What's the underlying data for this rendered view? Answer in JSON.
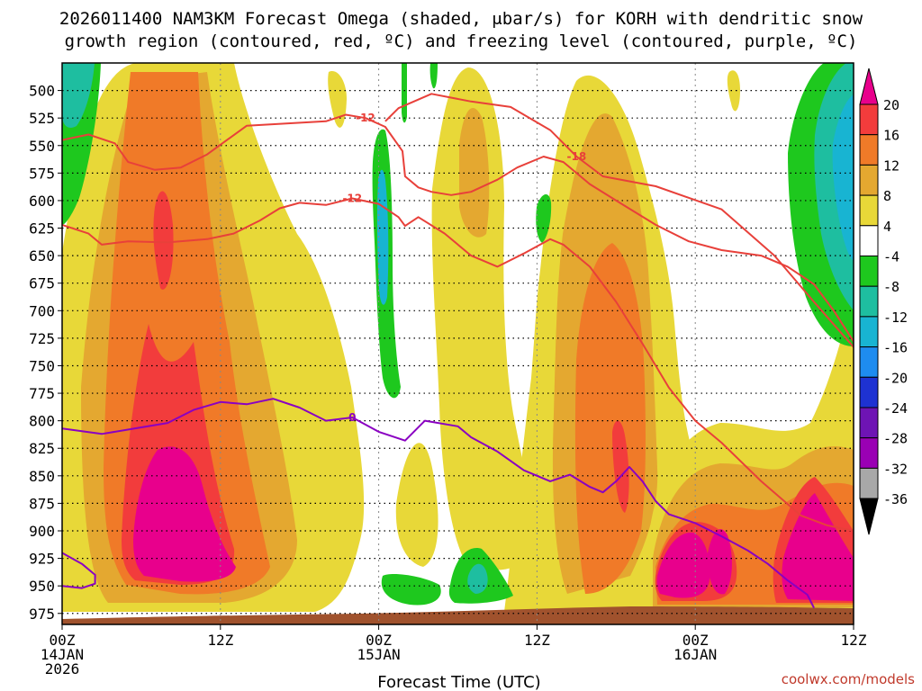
{
  "chart_data": {
    "type": "time-height contour (shaded omega)",
    "title_line1": "2026011400 NAM3KM Forecast Omega (shaded, μbar/s) for KORH with dendritic snow",
    "title_line2": "growth region (contoured, red, ºC) and freezing level (contoured, purple, ºC)",
    "xlabel": "Forecast Time (UTC)",
    "ylabel": "Pressure (hPa)",
    "credit": "coolwx.com/models",
    "x_range_hours": [
      0,
      36
    ],
    "y_range_hpa": [
      475,
      985
    ],
    "y_ticks": [
      500,
      525,
      550,
      575,
      600,
      625,
      650,
      675,
      700,
      725,
      750,
      775,
      800,
      825,
      850,
      875,
      900,
      925,
      950,
      975
    ],
    "x_ticks": [
      {
        "hour": 0,
        "l1": "00Z",
        "l2": "14JAN",
        "l3": "2026"
      },
      {
        "hour": 12,
        "l1": "12Z",
        "l2": "",
        "l3": ""
      },
      {
        "hour": 24,
        "l1": "00Z",
        "l2": "15JAN",
        "l3": ""
      },
      {
        "hour": 36,
        "l1": "12Z",
        "l2": "",
        "l3": ""
      },
      {
        "hour": 48,
        "l1": "00Z",
        "l2": "16JAN",
        "l3": ""
      },
      {
        "hour": 60,
        "l1": "12Z",
        "l2": "",
        "l3": ""
      }
    ],
    "x_time_range_hours": [
      0,
      60
    ],
    "colorbar": {
      "ticks": [
        20,
        16,
        12,
        8,
        4,
        -4,
        -8,
        -12,
        -16,
        -20,
        -24,
        -28,
        -32,
        -36
      ],
      "colors": [
        "#e8008c",
        "#f23c3c",
        "#f07a28",
        "#e4a830",
        "#e8d838",
        "#ffffff",
        "#1ec81e",
        "#1ebea0",
        "#18b4d2",
        "#1e8cf0",
        "#1e32d2",
        "#6e14b4",
        "#9a00b4",
        "#a8a8a8",
        "#000000"
      ]
    },
    "contours": {
      "dendritic_red": [
        {
          "label": "-18",
          "points": [
            [
              24.5,
              528
            ],
            [
              25.5,
              516
            ],
            [
              28,
              503
            ],
            [
              31,
              510
            ],
            [
              34,
              515
            ],
            [
              37,
              536
            ],
            [
              39,
              560
            ],
            [
              41,
              578
            ],
            [
              45,
              587
            ],
            [
              50,
              608
            ],
            [
              54,
              650
            ],
            [
              57,
              692
            ],
            [
              60,
              733
            ],
            [
              62,
              782
            ],
            [
              64,
              838
            ],
            [
              66,
              874
            ],
            [
              67,
              903
            ],
            [
              70,
              924
            ],
            [
              74,
              942
            ],
            [
              78,
              955
            ],
            [
              80,
              958
            ]
          ]
        },
        {
          "label": "-12",
          "points": [
            [
              0,
              545
            ],
            [
              2,
              540
            ],
            [
              4,
              548
            ],
            [
              5,
              565
            ],
            [
              7,
              572
            ],
            [
              9,
              570
            ],
            [
              11,
              558
            ],
            [
              12.5,
              545
            ],
            [
              14,
              532
            ],
            [
              17,
              530
            ],
            [
              20,
              528
            ],
            [
              21.5,
              522
            ],
            [
              23,
              525
            ],
            [
              24.5,
              533
            ],
            [
              25.8,
              555
            ],
            [
              26,
              578
            ],
            [
              27,
              588
            ],
            [
              28,
              592
            ],
            [
              29.5,
              595
            ],
            [
              31,
              592
            ],
            [
              33,
              581
            ],
            [
              34.5,
              570
            ],
            [
              36.5,
              560
            ],
            [
              38,
              565
            ],
            [
              40,
              585
            ],
            [
              42,
              600
            ],
            [
              45,
              622
            ],
            [
              47.5,
              637
            ],
            [
              50,
              645
            ],
            [
              53,
              650
            ],
            [
              55,
              660
            ],
            [
              57,
              676
            ],
            [
              58.5,
              700
            ],
            [
              60,
              728
            ],
            [
              60.5,
              760
            ],
            [
              60.5,
              830
            ],
            [
              61,
              860
            ],
            [
              64,
              875
            ],
            [
              67,
              881
            ],
            [
              70,
              896
            ],
            [
              75,
              902
            ],
            [
              80,
              904
            ]
          ]
        },
        {
          "label": "-12",
          "points": [
            [
              0,
              622
            ],
            [
              2,
              630
            ],
            [
              3,
              640
            ],
            [
              5,
              637
            ],
            [
              8,
              638
            ],
            [
              11,
              635
            ],
            [
              13,
              630
            ],
            [
              15,
              618
            ],
            [
              16.5,
              607
            ],
            [
              18,
              602
            ],
            [
              20,
              604
            ],
            [
              22,
              598
            ],
            [
              24,
              603
            ],
            [
              25.5,
              615
            ],
            [
              26,
              623
            ],
            [
              27,
              615
            ],
            [
              29,
              630
            ],
            [
              31,
              650
            ],
            [
              33,
              660
            ],
            [
              35,
              648
            ],
            [
              37,
              635
            ],
            [
              38,
              640
            ],
            [
              40,
              660
            ],
            [
              42,
              692
            ],
            [
              44,
              730
            ],
            [
              46,
              770
            ],
            [
              48,
              800
            ],
            [
              50,
              820
            ],
            [
              53,
              855
            ],
            [
              56,
              886
            ],
            [
              58,
              895
            ],
            [
              62,
              905
            ],
            [
              66,
              912
            ],
            [
              70,
              922
            ],
            [
              74,
              935
            ],
            [
              78,
              942
            ],
            [
              80,
              944
            ]
          ]
        },
        {
          "label": "",
          "points": [
            [
              67,
              703
            ],
            [
              69,
              688
            ],
            [
              71,
              676
            ],
            [
              73,
              670
            ],
            [
              75,
              665
            ],
            [
              80,
              660
            ]
          ]
        }
      ],
      "freezing_purple": [
        {
          "label": "0",
          "points": [
            [
              0,
              807
            ],
            [
              3,
              812
            ],
            [
              6,
              806
            ],
            [
              8,
              802
            ],
            [
              10,
              790
            ],
            [
              12,
              783
            ],
            [
              14,
              785
            ],
            [
              16,
              780
            ],
            [
              18,
              788
            ],
            [
              20,
              800
            ],
            [
              22,
              797
            ],
            [
              24,
              810
            ],
            [
              26,
              818
            ],
            [
              27.5,
              800
            ],
            [
              30,
              805
            ],
            [
              31,
              815
            ],
            [
              33,
              828
            ],
            [
              35,
              845
            ],
            [
              37,
              855
            ],
            [
              38.5,
              849
            ],
            [
              40,
              860
            ],
            [
              41,
              865
            ],
            [
              42,
              855
            ],
            [
              43,
              842
            ],
            [
              44,
              855
            ],
            [
              45,
              873
            ],
            [
              46,
              885
            ],
            [
              48,
              893
            ],
            [
              50,
              905
            ],
            [
              52,
              918
            ],
            [
              53.5,
              930
            ],
            [
              55,
              945
            ],
            [
              56.5,
              958
            ],
            [
              57,
              970
            ]
          ]
        },
        {
          "label": "",
          "points": [
            [
              0,
              920
            ],
            [
              1.5,
              930
            ],
            [
              2.5,
              940
            ],
            [
              2.5,
              948
            ],
            [
              1.5,
              952
            ],
            [
              0,
              950
            ]
          ]
        }
      ]
    }
  },
  "colors": {
    "plus20": "#e8008c",
    "plus16": "#f23c3c",
    "plus12": "#f07a28",
    "plus8": "#e4a830",
    "plus4": "#e8d838",
    "minus4": "#1ec81e",
    "minus8": "#1ebea0",
    "minus12": "#18b4d2",
    "terrain": "#a0522d",
    "dendritic": "#e8403a",
    "freezing": "#8a00c2"
  }
}
